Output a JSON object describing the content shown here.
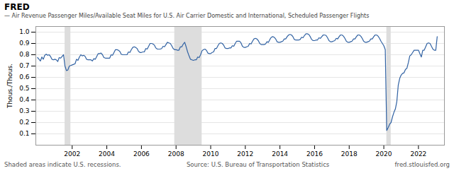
{
  "chart_data": {
    "type": "line",
    "title": "FRED",
    "subtitle": "—  Air Revenue Passenger Miles/Available Seat Miles for U.S. Air Carrier Domestic and International, Scheduled Passenger Flights",
    "ylabel": "Thous./Thous.",
    "annotations": [
      "Shaded areas indicate U.S. recessions.",
      "Source: U.S. Bureau of Transportation Statistics",
      "fred.stlouisfed.org"
    ],
    "color": "#3162a3",
    "grid": true,
    "recessions": [
      [
        2001.583,
        2001.917
      ],
      [
        2007.917,
        2009.5
      ],
      [
        2020.167,
        2020.417
      ]
    ],
    "xlim": [
      1999.9,
      2023.5
    ],
    "xticks": [
      2002,
      2004,
      2006,
      2008,
      2010,
      2012,
      2014,
      2016,
      2018,
      2020,
      2022
    ],
    "ylim": [
      0.0,
      1.05
    ],
    "yticks": [
      0.1,
      0.2,
      0.3,
      0.4,
      0.5,
      0.6,
      0.7,
      0.8,
      0.9,
      {
        "value": 1.0,
        "label": "1.0"
      }
    ],
    "x": [
      2000.0,
      2000.083,
      2000.167,
      2000.25,
      2000.333,
      2000.417,
      2000.5,
      2000.583,
      2000.667,
      2000.75,
      2000.833,
      2000.917,
      2001.0,
      2001.083,
      2001.167,
      2001.25,
      2001.333,
      2001.417,
      2001.5,
      2001.583,
      2001.667,
      2001.75,
      2001.833,
      2001.917,
      2002.0,
      2002.083,
      2002.167,
      2002.25,
      2002.333,
      2002.417,
      2002.5,
      2002.583,
      2002.667,
      2002.75,
      2002.833,
      2002.917,
      2003.0,
      2003.083,
      2003.167,
      2003.25,
      2003.333,
      2003.417,
      2003.5,
      2003.583,
      2003.667,
      2003.75,
      2003.833,
      2003.917,
      2004.0,
      2004.083,
      2004.167,
      2004.25,
      2004.333,
      2004.417,
      2004.5,
      2004.583,
      2004.667,
      2004.75,
      2004.833,
      2004.917,
      2005.0,
      2005.083,
      2005.167,
      2005.25,
      2005.333,
      2005.417,
      2005.5,
      2005.583,
      2005.667,
      2005.75,
      2005.833,
      2005.917,
      2006.0,
      2006.083,
      2006.167,
      2006.25,
      2006.333,
      2006.417,
      2006.5,
      2006.583,
      2006.667,
      2006.75,
      2006.833,
      2006.917,
      2007.0,
      2007.083,
      2007.167,
      2007.25,
      2007.333,
      2007.417,
      2007.5,
      2007.583,
      2007.667,
      2007.75,
      2007.833,
      2007.917,
      2008.0,
      2008.083,
      2008.167,
      2008.25,
      2008.333,
      2008.417,
      2008.5,
      2008.583,
      2008.667,
      2008.75,
      2008.833,
      2008.917,
      2009.0,
      2009.083,
      2009.167,
      2009.25,
      2009.333,
      2009.417,
      2009.5,
      2009.583,
      2009.667,
      2009.75,
      2009.833,
      2009.917,
      2010.0,
      2010.083,
      2010.167,
      2010.25,
      2010.333,
      2010.417,
      2010.5,
      2010.583,
      2010.667,
      2010.75,
      2010.833,
      2010.917,
      2011.0,
      2011.083,
      2011.167,
      2011.25,
      2011.333,
      2011.417,
      2011.5,
      2011.583,
      2011.667,
      2011.75,
      2011.833,
      2011.917,
      2012.0,
      2012.083,
      2012.167,
      2012.25,
      2012.333,
      2012.417,
      2012.5,
      2012.583,
      2012.667,
      2012.75,
      2012.833,
      2012.917,
      2013.0,
      2013.083,
      2013.167,
      2013.25,
      2013.333,
      2013.417,
      2013.5,
      2013.583,
      2013.667,
      2013.75,
      2013.833,
      2013.917,
      2014.0,
      2014.083,
      2014.167,
      2014.25,
      2014.333,
      2014.417,
      2014.5,
      2014.583,
      2014.667,
      2014.75,
      2014.833,
      2014.917,
      2015.0,
      2015.083,
      2015.167,
      2015.25,
      2015.333,
      2015.417,
      2015.5,
      2015.583,
      2015.667,
      2015.75,
      2015.833,
      2015.917,
      2016.0,
      2016.083,
      2016.167,
      2016.25,
      2016.333,
      2016.417,
      2016.5,
      2016.583,
      2016.667,
      2016.75,
      2016.833,
      2016.917,
      2017.0,
      2017.083,
      2017.167,
      2017.25,
      2017.333,
      2017.417,
      2017.5,
      2017.583,
      2017.667,
      2017.75,
      2017.833,
      2017.917,
      2018.0,
      2018.083,
      2018.167,
      2018.25,
      2018.333,
      2018.417,
      2018.5,
      2018.583,
      2018.667,
      2018.75,
      2018.833,
      2018.917,
      2019.0,
      2019.083,
      2019.167,
      2019.25,
      2019.333,
      2019.417,
      2019.5,
      2019.583,
      2019.667,
      2019.75,
      2019.833,
      2019.917,
      2020.0,
      2020.083,
      2020.167,
      2020.25,
      2020.333,
      2020.417,
      2020.5,
      2020.583,
      2020.667,
      2020.75,
      2020.833,
      2020.917,
      2021.0,
      2021.083,
      2021.167,
      2021.25,
      2021.333,
      2021.417,
      2021.5,
      2021.583,
      2021.667,
      2021.75,
      2021.833,
      2021.917,
      2022.0,
      2022.083,
      2022.167,
      2022.25,
      2022.333,
      2022.417,
      2022.5,
      2022.583,
      2022.667,
      2022.75,
      2022.833,
      2022.917,
      2023.0,
      2023.083
    ],
    "values": [
      0.775,
      0.76,
      0.745,
      0.78,
      0.76,
      0.795,
      0.805,
      0.795,
      0.8,
      0.785,
      0.76,
      0.755,
      0.76,
      0.755,
      0.74,
      0.775,
      0.77,
      0.785,
      0.8,
      0.7,
      0.66,
      0.665,
      0.7,
      0.705,
      0.71,
      0.715,
      0.72,
      0.76,
      0.75,
      0.78,
      0.8,
      0.79,
      0.795,
      0.785,
      0.76,
      0.755,
      0.755,
      0.755,
      0.745,
      0.765,
      0.76,
      0.785,
      0.81,
      0.81,
      0.815,
      0.8,
      0.775,
      0.77,
      0.77,
      0.77,
      0.77,
      0.8,
      0.795,
      0.82,
      0.845,
      0.845,
      0.84,
      0.83,
      0.805,
      0.8,
      0.8,
      0.8,
      0.8,
      0.825,
      0.82,
      0.845,
      0.865,
      0.87,
      0.865,
      0.855,
      0.83,
      0.82,
      0.82,
      0.825,
      0.825,
      0.855,
      0.85,
      0.875,
      0.9,
      0.9,
      0.895,
      0.885,
      0.86,
      0.85,
      0.85,
      0.85,
      0.855,
      0.875,
      0.87,
      0.89,
      0.91,
      0.905,
      0.9,
      0.88,
      0.855,
      0.845,
      0.845,
      0.84,
      0.84,
      0.87,
      0.87,
      0.895,
      0.91,
      0.87,
      0.825,
      0.79,
      0.76,
      0.755,
      0.75,
      0.755,
      0.755,
      0.78,
      0.775,
      0.8,
      0.835,
      0.845,
      0.85,
      0.84,
      0.815,
      0.81,
      0.81,
      0.82,
      0.825,
      0.855,
      0.855,
      0.88,
      0.9,
      0.905,
      0.9,
      0.885,
      0.86,
      0.855,
      0.855,
      0.86,
      0.86,
      0.88,
      0.875,
      0.9,
      0.92,
      0.92,
      0.92,
      0.905,
      0.875,
      0.865,
      0.865,
      0.87,
      0.875,
      0.9,
      0.895,
      0.92,
      0.94,
      0.945,
      0.94,
      0.925,
      0.9,
      0.89,
      0.89,
      0.89,
      0.895,
      0.915,
      0.91,
      0.935,
      0.955,
      0.96,
      0.955,
      0.94,
      0.915,
      0.91,
      0.91,
      0.915,
      0.92,
      0.94,
      0.94,
      0.96,
      0.975,
      0.98,
      0.975,
      0.96,
      0.935,
      0.93,
      0.93,
      0.93,
      0.935,
      0.955,
      0.95,
      0.97,
      0.985,
      0.985,
      0.98,
      0.96,
      0.935,
      0.925,
      0.925,
      0.93,
      0.93,
      0.95,
      0.945,
      0.96,
      0.975,
      0.975,
      0.97,
      0.95,
      0.925,
      0.915,
      0.915,
      0.92,
      0.925,
      0.945,
      0.94,
      0.96,
      0.975,
      0.975,
      0.965,
      0.945,
      0.92,
      0.91,
      0.91,
      0.915,
      0.92,
      0.94,
      0.94,
      0.96,
      0.975,
      0.975,
      0.965,
      0.945,
      0.92,
      0.91,
      0.91,
      0.915,
      0.92,
      0.94,
      0.94,
      0.96,
      0.975,
      0.975,
      0.965,
      0.945,
      0.92,
      0.9,
      0.88,
      0.845,
      0.13,
      0.155,
      0.185,
      0.2,
      0.25,
      0.29,
      0.32,
      0.385,
      0.53,
      0.59,
      0.62,
      0.635,
      0.64,
      0.67,
      0.68,
      0.73,
      0.79,
      0.8,
      0.82,
      0.84,
      0.84,
      0.84,
      0.84,
      0.81,
      0.78,
      0.84,
      0.84,
      0.87,
      0.9,
      0.905,
      0.9,
      0.875,
      0.85,
      0.84,
      0.84,
      0.96
    ]
  }
}
